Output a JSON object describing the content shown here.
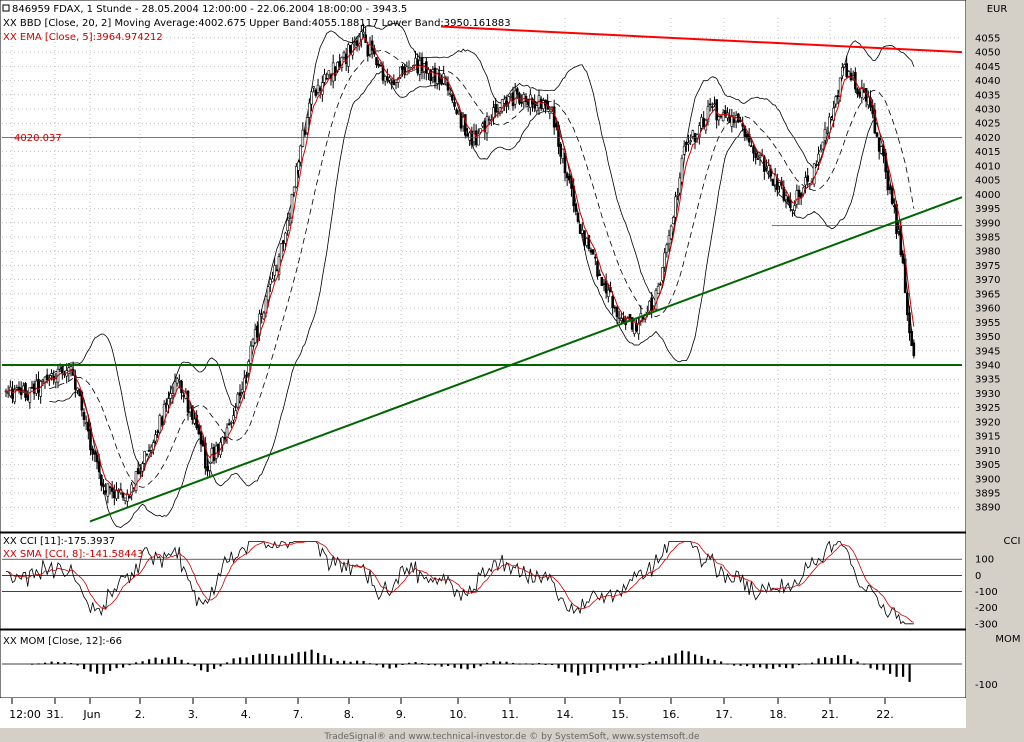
{
  "header": {
    "symbol_line": "846959  FDAX, 1 Stunde - 28.05.2004 12:00:00 - 22.06.2004 18:00:00 - 3943.5",
    "bbd_line": "XX BBD [Close, 20, 2] Moving Average:4002.675 Upper Band:4055.188117 Lower Band:3950.161883",
    "ema_line": "XX EMA [Close, 5]:3964.974212",
    "currency": "EUR"
  },
  "cci_panel": {
    "cci_line": "XX CCI [11]:-175.3937",
    "sma_line": "XX SMA [CCI, 8]:-141.58443",
    "label": "CCI",
    "ticks": [
      "100",
      "0",
      "-100",
      "-200",
      "-300"
    ]
  },
  "mom_panel": {
    "mom_line": "XX MOM [Close, 12]:-66",
    "label": "MOM",
    "ticks": [
      "-100"
    ]
  },
  "annotation": {
    "level_label": "4020.037"
  },
  "footer": "TradeSignal® and www.technical-investor.de © by SystemSoft, www.systemsoft.de",
  "colors": {
    "background": "#ffffff",
    "candles": "#000000",
    "ema": "#cc0000",
    "resistance_trendline": "#ff0000",
    "support_trendlines": "#006600",
    "bands": "#000000",
    "grid": "#888888"
  },
  "chart_data": [
    {
      "type": "candlestick",
      "title": "846959 FDAX, 1 Stunde",
      "ylabel": "EUR",
      "ylim": [
        3882,
        4062
      ],
      "y_ticks": [
        3890,
        3895,
        3900,
        3905,
        3910,
        3915,
        3920,
        3925,
        3930,
        3935,
        3940,
        3945,
        3950,
        3955,
        3960,
        3965,
        3970,
        3975,
        3980,
        3985,
        3990,
        3995,
        4000,
        4005,
        4010,
        4015,
        4020,
        4025,
        4030,
        4035,
        4040,
        4045,
        4050,
        4055
      ],
      "x_tick_labels": [
        "12:00",
        "31.",
        "Jun",
        "2.",
        "3.",
        "4.",
        "7.",
        "8.",
        "9.",
        "10.",
        "11.",
        "14.",
        "15.",
        "16.",
        "17.",
        "18.",
        "21.",
        "22."
      ],
      "grid": true,
      "last_close": 3943.5,
      "ema_last": 3964.974212,
      "bollinger": {
        "period": 20,
        "stddev": 2,
        "moving_average": 4002.675,
        "upper": 4055.188117,
        "lower": 3950.161883
      },
      "horizontal_levels": [
        4020.037,
        3940,
        3989
      ],
      "close_path": [
        {
          "x": "12:00",
          "y": 3930
        },
        {
          "x": "31.",
          "y": 3940
        },
        {
          "x": "Jun",
          "y": 3898
        },
        {
          "x": "Jun",
          "y": 3893
        },
        {
          "x": "2.",
          "y": 3915
        },
        {
          "x": "2.",
          "y": 3935
        },
        {
          "x": "3.",
          "y": 3905
        },
        {
          "x": "3.",
          "y": 3920
        },
        {
          "x": "4.",
          "y": 3955
        },
        {
          "x": "4.",
          "y": 3985
        },
        {
          "x": "7.",
          "y": 4035
        },
        {
          "x": "7.",
          "y": 4045
        },
        {
          "x": "8.",
          "y": 4055
        },
        {
          "x": "8.",
          "y": 4040
        },
        {
          "x": "9.",
          "y": 4045
        },
        {
          "x": "9.",
          "y": 4040
        },
        {
          "x": "10.",
          "y": 4018
        },
        {
          "x": "10.",
          "y": 4030
        },
        {
          "x": "11.",
          "y": 4035
        },
        {
          "x": "11.",
          "y": 4030
        },
        {
          "x": "14.",
          "y": 3990
        },
        {
          "x": "14.",
          "y": 3965
        },
        {
          "x": "15.",
          "y": 3952
        },
        {
          "x": "15.",
          "y": 3965
        },
        {
          "x": "16.",
          "y": 4015
        },
        {
          "x": "16.",
          "y": 4030
        },
        {
          "x": "17.",
          "y": 4025
        },
        {
          "x": "17.",
          "y": 4010
        },
        {
          "x": "18.",
          "y": 3995
        },
        {
          "x": "18.",
          "y": 4010
        },
        {
          "x": "21.",
          "y": 4045
        },
        {
          "x": "21.",
          "y": 4030
        },
        {
          "x": "22.",
          "y": 4000
        },
        {
          "x": "22.",
          "y": 3980
        },
        {
          "x": "22.",
          "y": 3943.5
        }
      ],
      "trendlines": [
        {
          "color": "red",
          "from": {
            "x": "9.",
            "y": 4059
          },
          "to": {
            "x": "22.",
            "y": 4050
          }
        },
        {
          "color": "green",
          "from": {
            "x": "Jun",
            "y": 3885
          },
          "to": {
            "x": "22.",
            "y": 3999
          }
        },
        {
          "color": "green",
          "from": {
            "x": "12:00",
            "y": 3940
          },
          "to": {
            "x": "22.",
            "y": 3940
          }
        }
      ]
    },
    {
      "type": "line",
      "title": "CCI [11]",
      "ylim": [
        -320,
        250
      ],
      "y_ticks": [
        100,
        0,
        -100,
        -200,
        -300
      ],
      "reference_lines": [
        100,
        -100
      ],
      "series": [
        {
          "name": "CCI [11]",
          "last": -175.3937
        },
        {
          "name": "SMA [CCI, 8]",
          "last": -141.58443
        }
      ]
    },
    {
      "type": "bar",
      "title": "MOM [Close, 12]",
      "y_ticks": [
        -100
      ],
      "last": -66
    }
  ]
}
